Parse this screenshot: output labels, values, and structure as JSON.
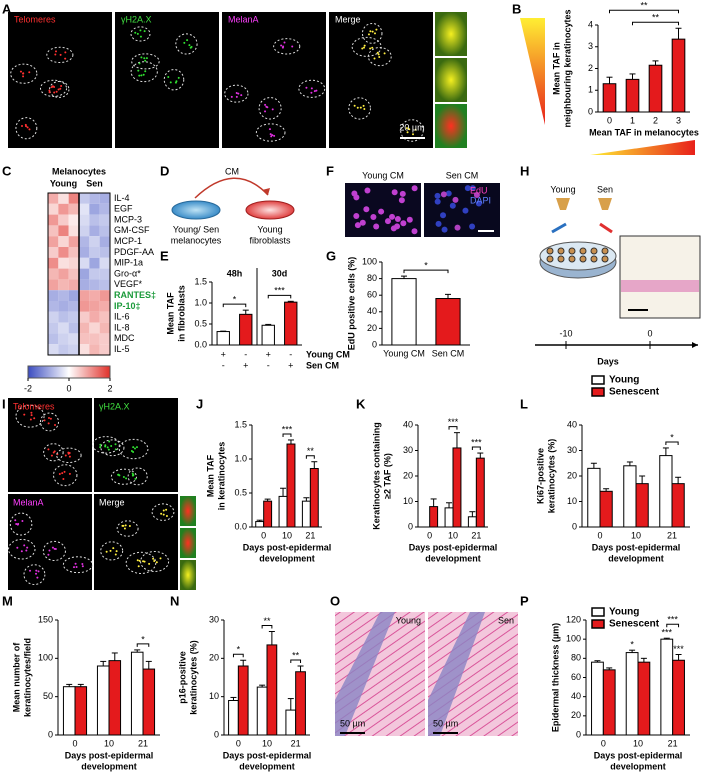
{
  "figure": {
    "A": {
      "panel": "A",
      "channels": [
        "Telomeres",
        "γH2A.X",
        "MelanA",
        "Merge"
      ],
      "scale_bar": "20 µm"
    },
    "D": {
      "panel": "D",
      "arrow": "CM",
      "source": [
        "Young/ Sen",
        "melanocytes"
      ],
      "target": [
        "Young",
        "fibroblasts"
      ]
    },
    "F": {
      "panel": "F",
      "images": [
        "Young CM",
        "Sen CM"
      ],
      "stains": [
        "EdU",
        "DAPI"
      ]
    },
    "H": {
      "panel": "H",
      "donors": [
        "Young",
        "Sen"
      ],
      "timeline": [
        "-10",
        "0"
      ],
      "axis": "Days"
    },
    "I": {
      "panel": "I",
      "channels": [
        "Telomeres",
        "γH2A.X",
        "MelanA",
        "Merge"
      ]
    },
    "O": {
      "panel": "O",
      "images": [
        "Young",
        "Sen"
      ],
      "scale_bars": [
        "50 µm",
        "50 µm"
      ]
    }
  },
  "chart_data": [
    {
      "panel": "B",
      "type": "bar",
      "categories": [
        "0",
        "1",
        "2",
        "3"
      ],
      "values": [
        1.3,
        1.5,
        2.15,
        3.35
      ],
      "errors": [
        0.3,
        0.25,
        0.2,
        0.5
      ],
      "color": "#e41a1c",
      "ylim": [
        0,
        4
      ],
      "yticks": [
        0,
        1,
        2,
        3,
        4
      ],
      "ylabel": [
        "Mean TAF in",
        "neighbouring keratinocytes"
      ],
      "xlabel": [
        "Mean TAF in melanocytes"
      ],
      "annotations": [
        {
          "text": "**",
          "from": 1,
          "to": 3
        },
        {
          "text": "**",
          "from": 0,
          "to": 3
        }
      ]
    },
    {
      "panel": "C",
      "type": "heatmap",
      "title": "Melanocytes",
      "columns": [
        "Young",
        "Sen"
      ],
      "rows": [
        "IL-4",
        "EGF",
        "MCP-3",
        "GM-CSF",
        "MCP-1",
        "PDGF-AA",
        "MIP-1a",
        "Gro-α*",
        "VEGF*",
        "RANTES‡",
        "IP-10‡",
        "IL-6",
        "IL-8",
        "MDC",
        "IL-5"
      ],
      "values": [
        [
          0.8,
          0.3,
          1.2,
          -0.6,
          -0.8,
          -0.9
        ],
        [
          0.4,
          1.0,
          0.7,
          -0.3,
          -1.0,
          -0.8
        ],
        [
          1.0,
          0.5,
          0.2,
          -0.4,
          -0.7,
          -0.6
        ],
        [
          0.6,
          1.2,
          0.3,
          -0.5,
          -0.9,
          -0.7
        ],
        [
          0.9,
          0.4,
          0.9,
          -0.8,
          -0.5,
          -0.9
        ],
        [
          0.5,
          1.1,
          0.6,
          -0.9,
          -0.6,
          -0.7
        ],
        [
          1.1,
          0.3,
          0.4,
          -0.4,
          -1.0,
          -0.4
        ],
        [
          0.7,
          0.9,
          0.6,
          -1.0,
          -0.6,
          -0.6
        ],
        [
          0.9,
          0.7,
          0.8,
          -0.9,
          -0.8,
          -0.7
        ],
        [
          -0.9,
          -0.8,
          -1.0,
          0.9,
          0.8,
          1.0
        ],
        [
          -0.8,
          -0.9,
          -0.8,
          1.0,
          0.9,
          0.8
        ],
        [
          -0.5,
          -0.7,
          -0.6,
          0.5,
          0.8,
          0.6
        ],
        [
          -0.6,
          -0.4,
          -0.7,
          0.7,
          0.4,
          0.7
        ],
        [
          -0.7,
          -0.5,
          -0.4,
          0.6,
          0.6,
          0.5
        ],
        [
          -0.4,
          -0.6,
          -0.5,
          0.3,
          0.7,
          0.5
        ]
      ],
      "zlim": [
        -2,
        2
      ],
      "zticks": [
        -2,
        0,
        2
      ],
      "highlight_rows": [
        9,
        10
      ],
      "highlight_color": "#1a9a3a"
    },
    {
      "panel": "E",
      "type": "bar",
      "categories": [
        null,
        null,
        null,
        null
      ],
      "values": [
        0.32,
        0.73,
        0.47,
        1.02
      ],
      "errors": [
        0.01,
        0.1,
        0.02,
        0.02
      ],
      "colors": [
        "#ffffff",
        "#e41a1c",
        "#ffffff",
        "#e41a1c"
      ],
      "ylim": [
        0,
        1.5
      ],
      "yticks": [
        {
          "value": 0,
          "label": "0.0"
        },
        0.5,
        {
          "value": 1,
          "label": "1.0"
        },
        1.5
      ],
      "ylabel": [
        "Mean TAF",
        "in fibroblasts"
      ],
      "group_labels": [
        "48h",
        "30d"
      ],
      "conditions": [
        {
          "name": "Young CM",
          "marks": [
            "+",
            "-",
            "+",
            "-"
          ]
        },
        {
          "name": "Sen CM",
          "marks": [
            "-",
            "+",
            "-",
            "+"
          ]
        }
      ],
      "annotations": [
        {
          "text": "*",
          "from": 0,
          "to": 1
        },
        {
          "text": "***",
          "from": 2,
          "to": 3
        }
      ]
    },
    {
      "panel": "G",
      "type": "bar",
      "categories": [
        "Young CM",
        "Sen CM"
      ],
      "values": [
        80,
        56
      ],
      "errors": [
        3,
        5
      ],
      "colors": [
        "#ffffff",
        "#e41a1c"
      ],
      "ylim": [
        0,
        100
      ],
      "yticks": [
        0,
        20,
        40,
        60,
        80,
        100
      ],
      "ylabel": [
        "EdU positive cells (%)"
      ],
      "annotations": [
        {
          "text": "*",
          "from": 0,
          "to": 1
        }
      ]
    },
    {
      "panel": "J",
      "type": "bar",
      "categories": [
        "0",
        "10",
        "21"
      ],
      "series": [
        {
          "color": "#ffffff",
          "values": [
            0.08,
            0.45,
            0.38
          ],
          "errors": [
            0.02,
            0.12,
            0.05
          ]
        },
        {
          "color": "#e41a1c",
          "values": [
            0.38,
            1.22,
            0.86
          ],
          "errors": [
            0.03,
            0.06,
            0.1
          ]
        }
      ],
      "ylim": [
        0,
        1.5
      ],
      "yticks": [
        {
          "value": 0,
          "label": "0.0"
        },
        0.5,
        {
          "value": 1,
          "label": "1.0"
        },
        1.5
      ],
      "ylabel": [
        "Mean TAF",
        "in keratinocytes"
      ],
      "xlabel": [
        "Days post-epidermal",
        "development"
      ],
      "annotations": [
        {
          "text": "***",
          "category": 1
        },
        {
          "text": "**",
          "category": 2
        }
      ]
    },
    {
      "panel": "K",
      "type": "bar",
      "categories": [
        "0",
        "10",
        "21"
      ],
      "series": [
        {
          "color": "#ffffff",
          "values": [
            0,
            7.5,
            4
          ],
          "errors": [
            0,
            2,
            2
          ]
        },
        {
          "color": "#e41a1c",
          "values": [
            8,
            31,
            27
          ],
          "errors": [
            3,
            6,
            2
          ]
        }
      ],
      "ylim": [
        0,
        40
      ],
      "yticks": [
        0,
        10,
        20,
        30,
        40
      ],
      "ylabel": [
        "Keratinocytes containing",
        "≥2 TAF (%)"
      ],
      "xlabel": [
        "Days post-epidermal",
        "development"
      ],
      "annotations": [
        {
          "text": "***",
          "category": 1
        },
        {
          "text": "***",
          "category": 2
        }
      ]
    },
    {
      "panel": "L",
      "type": "bar",
      "categories": [
        "0",
        "10",
        "21"
      ],
      "series": [
        {
          "name": "Young",
          "color": "#ffffff",
          "values": [
            23,
            24,
            28
          ],
          "errors": [
            2,
            1.5,
            3
          ]
        },
        {
          "name": "Senescent",
          "color": "#e41a1c",
          "values": [
            14,
            17,
            17
          ],
          "errors": [
            1,
            3,
            2.5
          ]
        }
      ],
      "ylim": [
        0,
        40
      ],
      "yticks": [
        0,
        10,
        20,
        30,
        40
      ],
      "ylabel": [
        "Ki67-positive",
        "keratinocytes (%)"
      ],
      "xlabel": [
        "Days post-epidermal",
        "development"
      ],
      "legend": "above",
      "annotations": [
        {
          "text": "*",
          "category": 2
        }
      ]
    },
    {
      "panel": "M",
      "type": "bar",
      "categories": [
        "0",
        "10",
        "21"
      ],
      "series": [
        {
          "color": "#ffffff",
          "values": [
            63,
            90,
            108
          ],
          "errors": [
            3,
            6,
            3
          ]
        },
        {
          "color": "#e41a1c",
          "values": [
            63,
            97,
            86
          ],
          "errors": [
            3,
            10,
            10
          ]
        }
      ],
      "ylim": [
        0,
        150
      ],
      "yticks": [
        0,
        50,
        100,
        150
      ],
      "ylabel": [
        "Mean number of",
        "keratinocytes/field"
      ],
      "xlabel": [
        "Days post-epidermal",
        "development"
      ],
      "annotations": [
        {
          "text": "*",
          "category": 2
        }
      ]
    },
    {
      "panel": "N",
      "type": "bar",
      "categories": [
        "0",
        "10",
        "21"
      ],
      "series": [
        {
          "color": "#ffffff",
          "values": [
            9,
            12.5,
            6.5
          ],
          "errors": [
            0.8,
            0.5,
            3
          ]
        },
        {
          "color": "#e41a1c",
          "values": [
            18,
            23.5,
            16.5
          ],
          "errors": [
            1.5,
            3.5,
            1.5
          ]
        }
      ],
      "ylim": [
        0,
        30
      ],
      "yticks": [
        0,
        10,
        20,
        30
      ],
      "ylabel": [
        "p16-positive",
        "keratinocytes (%)"
      ],
      "xlabel": [
        "Days post-epidermal",
        "development"
      ],
      "annotations": [
        {
          "text": "*",
          "category": 0
        },
        {
          "text": "**",
          "category": 1
        },
        {
          "text": "**",
          "category": 2
        }
      ]
    },
    {
      "panel": "P",
      "type": "bar",
      "categories": [
        "0",
        "10",
        "21"
      ],
      "series": [
        {
          "name": "Young",
          "color": "#ffffff",
          "values": [
            76,
            86,
            100
          ],
          "errors": [
            1.5,
            2.5,
            1
          ]
        },
        {
          "name": "Senescent",
          "color": "#e41a1c",
          "values": [
            68,
            76,
            78
          ],
          "errors": [
            2,
            4,
            6
          ]
        }
      ],
      "ylim": [
        0,
        120
      ],
      "yticks": [
        0,
        20,
        40,
        60,
        80,
        100,
        120
      ],
      "ylabel": [
        "Epidermal thickness (µm)"
      ],
      "xlabel": [
        "Days post-epidermal",
        "development"
      ],
      "legend": "inside",
      "annotations": [
        {
          "text": "*",
          "series": 0,
          "category": 1
        },
        {
          "text": "***",
          "series": 0,
          "category": 2
        },
        {
          "text": "***",
          "series": 1,
          "category": 2
        },
        {
          "text": "***",
          "category": 2
        }
      ]
    }
  ]
}
